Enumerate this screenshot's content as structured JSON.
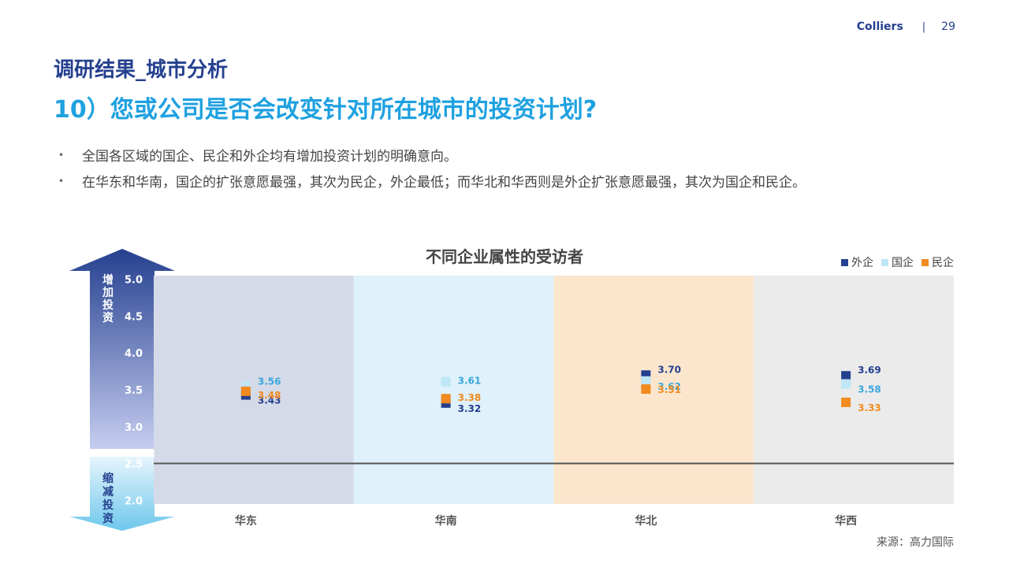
{
  "header": {
    "brand": "Colliers",
    "separator": "|",
    "page": "29"
  },
  "section_title": "调研结果_城市分析",
  "question": "10）您或公司是否会改变针对所在城市的投资计划?",
  "bullets": [
    "全国各区域的国企、民企和外企均有增加投资计划的明确意向。",
    "在华东和华南，国企的扩张意愿最强，其次为民企，外企最低；而华北和华西则是外企扩张意愿最强，其次为国企和民企。"
  ],
  "arrow": {
    "up_label": "增加投资",
    "down_label": "缩减投资"
  },
  "source": "来源：高力国际",
  "colors": {
    "foreign": "#25408f",
    "state": "#bfe6f5",
    "private": "#f28a1f",
    "panel_east": "#d5dae8",
    "panel_south": "#dff1fa",
    "panel_north": "#fbe6cd",
    "panel_west": "#ebebeb",
    "arrow_up": "#25408f",
    "arrow_down": "#6ec7ec"
  },
  "chart_data": {
    "type": "scatter",
    "title": "不同企业属性的受访者",
    "categories": [
      "华东",
      "华南",
      "华北",
      "华西"
    ],
    "yticks": [
      "5.0",
      "4.5",
      "4.0",
      "3.5",
      "3.0",
      "2.5",
      "2.0"
    ],
    "ylim": [
      1.95,
      5.05
    ],
    "reference_line": 2.5,
    "legend_position": "top-right",
    "series": [
      {
        "name": "外企",
        "key": "foreign",
        "values": [
          3.43,
          3.32,
          3.7,
          3.69
        ],
        "labels": [
          "3.43",
          "3.32",
          "3.70",
          "3.69"
        ],
        "label_color": "#25408f"
      },
      {
        "name": "国企",
        "key": "state",
        "values": [
          3.56,
          3.61,
          3.62,
          3.58
        ],
        "labels": [
          "3.56",
          "3.61",
          "3.62",
          "3.58"
        ],
        "label_color": "#3aa7dc"
      },
      {
        "name": "民企",
        "key": "private",
        "values": [
          3.48,
          3.38,
          3.51,
          3.33
        ],
        "labels": [
          "3.48",
          "3.38",
          "3.51",
          "3.33"
        ],
        "label_color": "#f28a1f"
      }
    ]
  }
}
